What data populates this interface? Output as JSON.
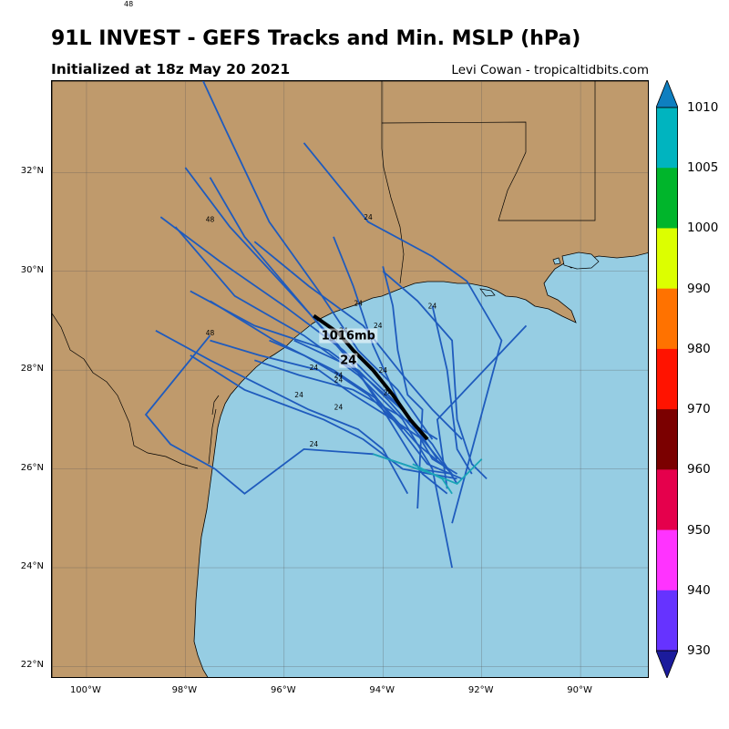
{
  "header": {
    "title": "91L INVEST - GEFS Tracks and Min. MSLP (hPa)",
    "subtitle": "Initialized at 18z May 20 2021",
    "credit": "Levi Cowan - tropicaltidbits.com",
    "stray_label": "48"
  },
  "map": {
    "extent": {
      "lon_min": -100.7,
      "lon_max": -88.6,
      "lat_min": 21.75,
      "lat_max": 33.85
    },
    "colors": {
      "land": "#bf9a6c",
      "water": "#96cde3",
      "grid": "#555555",
      "track": "#1f5bbd",
      "track_cyan": "#1aa6b7",
      "mean_track": "#000000"
    },
    "lat_ticks": [
      {
        "label": "32°N",
        "lat": 32
      },
      {
        "label": "30°N",
        "lat": 30
      },
      {
        "label": "28°N",
        "lat": 28
      },
      {
        "label": "26°N",
        "lat": 26
      },
      {
        "label": "24°N",
        "lat": 24
      },
      {
        "label": "22°N",
        "lat": 22
      }
    ],
    "lon_ticks": [
      {
        "label": "100°W",
        "lon": -100
      },
      {
        "label": "98°W",
        "lon": -98
      },
      {
        "label": "96°W",
        "lon": -96
      },
      {
        "label": "94°W",
        "lon": -94
      },
      {
        "label": "92°W",
        "lon": -92
      },
      {
        "label": "90°W",
        "lon": -90
      }
    ],
    "mslp_label": "1016mb",
    "mslp_label_pos": {
      "lon": -94.7,
      "lat": 28.62
    },
    "hour_label": "24",
    "hour_label_pos": {
      "lon": -94.7,
      "lat": 28.12
    },
    "mean_track": [
      [
        -95.4,
        29.1
      ],
      [
        -94.9,
        28.75
      ],
      [
        -94.6,
        28.4
      ],
      [
        -94.2,
        28.0
      ],
      [
        -93.8,
        27.5
      ],
      [
        -93.45,
        27.0
      ],
      [
        -93.1,
        26.6
      ]
    ],
    "tracks": [
      {
        "color": "track",
        "points": [
          [
            -97.8,
            34.2
          ],
          [
            -97.2,
            32.9
          ],
          [
            -96.3,
            31.0
          ],
          [
            -95.3,
            29.6
          ],
          [
            -94.5,
            28.4
          ],
          [
            -93.7,
            27.6
          ],
          [
            -93.0,
            26.6
          ]
        ]
      },
      {
        "color": "track",
        "points": [
          [
            -98.0,
            32.1
          ],
          [
            -97.1,
            30.9
          ],
          [
            -95.9,
            29.6
          ],
          [
            -94.9,
            28.5
          ],
          [
            -94.1,
            27.4
          ],
          [
            -93.1,
            26.1
          ],
          [
            -92.4,
            25.8
          ]
        ]
      },
      {
        "color": "track",
        "points": [
          [
            -97.5,
            31.9
          ],
          [
            -96.8,
            30.7
          ],
          [
            -95.7,
            29.4
          ],
          [
            -94.6,
            28.1
          ],
          [
            -94.0,
            27.2
          ],
          [
            -93.2,
            25.9
          ],
          [
            -92.7,
            25.5
          ]
        ]
      },
      {
        "color": "track",
        "points": [
          [
            -98.5,
            31.1
          ],
          [
            -97.3,
            30.2
          ],
          [
            -96.0,
            29.3
          ],
          [
            -94.8,
            28.4
          ],
          [
            -93.7,
            27.3
          ],
          [
            -93.0,
            26.5
          ],
          [
            -92.5,
            25.7
          ]
        ]
      },
      {
        "color": "track",
        "points": [
          [
            -98.2,
            30.9
          ],
          [
            -97.0,
            29.5
          ],
          [
            -95.6,
            28.7
          ],
          [
            -94.5,
            27.9
          ],
          [
            -93.6,
            27.0
          ],
          [
            -93.0,
            26.0
          ],
          [
            -92.6,
            24.0
          ]
        ]
      },
      {
        "color": "track",
        "points": [
          [
            -95.6,
            32.6
          ],
          [
            -94.3,
            31.0
          ],
          [
            -93.0,
            30.3
          ],
          [
            -92.3,
            29.8
          ],
          [
            -91.6,
            28.6
          ],
          [
            -92.6,
            24.9
          ]
        ]
      },
      {
        "color": "track",
        "points": [
          [
            -95.0,
            30.7
          ],
          [
            -94.6,
            29.7
          ],
          [
            -94.2,
            28.5
          ],
          [
            -93.7,
            27.4
          ],
          [
            -93.0,
            26.2
          ],
          [
            -92.5,
            25.9
          ]
        ]
      },
      {
        "color": "track",
        "points": [
          [
            -94.0,
            30.1
          ],
          [
            -93.8,
            29.3
          ],
          [
            -93.7,
            28.4
          ],
          [
            -93.5,
            27.5
          ],
          [
            -93.2,
            27.2
          ],
          [
            -93.3,
            25.2
          ]
        ]
      },
      {
        "color": "track",
        "points": [
          [
            -94.0,
            30.0
          ],
          [
            -93.3,
            29.4
          ],
          [
            -92.6,
            28.6
          ],
          [
            -92.5,
            27.0
          ],
          [
            -92.2,
            26.1
          ],
          [
            -91.9,
            25.8
          ]
        ]
      },
      {
        "color": "track",
        "points": [
          [
            -93.0,
            29.3
          ],
          [
            -92.7,
            28.0
          ],
          [
            -92.5,
            26.4
          ],
          [
            -92.2,
            25.9
          ]
        ]
      },
      {
        "color": "track",
        "points": [
          [
            -91.1,
            28.9
          ],
          [
            -92.9,
            27.0
          ],
          [
            -92.7,
            25.6
          ]
        ]
      },
      {
        "color": "track",
        "points": [
          [
            -96.6,
            30.6
          ],
          [
            -95.5,
            29.7
          ],
          [
            -94.4,
            28.9
          ],
          [
            -93.6,
            27.9
          ],
          [
            -93.0,
            27.2
          ],
          [
            -92.4,
            26.6
          ]
        ]
      },
      {
        "color": "track",
        "points": [
          [
            -97.9,
            29.6
          ],
          [
            -96.6,
            28.9
          ],
          [
            -95.1,
            28.4
          ],
          [
            -94.3,
            27.8
          ],
          [
            -93.5,
            27.1
          ],
          [
            -92.9,
            26.2
          ]
        ]
      },
      {
        "color": "track",
        "points": [
          [
            -97.5,
            29.4
          ],
          [
            -96.2,
            28.6
          ],
          [
            -95.0,
            28.0
          ],
          [
            -94.1,
            27.4
          ],
          [
            -93.3,
            26.5
          ],
          [
            -92.7,
            26.0
          ]
        ]
      },
      {
        "color": "track",
        "points": [
          [
            -98.6,
            28.8
          ],
          [
            -97.5,
            28.2
          ],
          [
            -96.5,
            27.7
          ],
          [
            -95.5,
            27.2
          ],
          [
            -94.5,
            26.8
          ],
          [
            -94.0,
            26.4
          ],
          [
            -93.5,
            25.5
          ]
        ]
      },
      {
        "color": "track",
        "points": [
          [
            -97.5,
            28.6
          ],
          [
            -96.5,
            28.3
          ],
          [
            -95.3,
            28.0
          ],
          [
            -94.6,
            27.5
          ],
          [
            -93.8,
            27.0
          ],
          [
            -93.2,
            26.6
          ]
        ]
      },
      {
        "color": "track",
        "points": [
          [
            -96.3,
            28.6
          ],
          [
            -95.6,
            28.3
          ],
          [
            -94.9,
            27.9
          ],
          [
            -94.3,
            27.5
          ],
          [
            -93.6,
            26.8
          ]
        ]
      },
      {
        "color": "track",
        "points": [
          [
            -95.8,
            28.6
          ],
          [
            -94.5,
            28.0
          ],
          [
            -93.9,
            27.4
          ],
          [
            -93.2,
            26.6
          ],
          [
            -92.7,
            26.0
          ],
          [
            -92.6,
            25.9
          ]
        ]
      },
      {
        "color": "track",
        "points": [
          [
            -97.9,
            28.3
          ],
          [
            -96.8,
            27.6
          ],
          [
            -96.0,
            27.3
          ],
          [
            -95.2,
            27.0
          ],
          [
            -94.4,
            26.6
          ],
          [
            -93.6,
            26.0
          ],
          [
            -92.5,
            25.8
          ]
        ]
      },
      {
        "color": "track",
        "points": [
          [
            -96.6,
            28.2
          ],
          [
            -95.7,
            27.9
          ],
          [
            -94.6,
            27.6
          ],
          [
            -93.7,
            27.1
          ],
          [
            -92.9,
            26.6
          ]
        ]
      },
      {
        "color": "track",
        "points": [
          [
            -97.5,
            28.7
          ],
          [
            -98.8,
            27.1
          ],
          [
            -98.3,
            26.5
          ],
          [
            -97.4,
            26.0
          ],
          [
            -96.8,
            25.5
          ],
          [
            -95.6,
            26.4
          ],
          [
            -94.2,
            26.3
          ],
          [
            -93.3,
            26.0
          ],
          [
            -92.6,
            25.9
          ]
        ]
      }
    ],
    "cyan_tracks": [
      [
        [
          -94.2,
          26.3
        ],
        [
          -93.6,
          26.1
        ],
        [
          -93.0,
          25.9
        ],
        [
          -92.5,
          25.7
        ],
        [
          -92.0,
          26.2
        ]
      ],
      [
        [
          -93.4,
          26.1
        ],
        [
          -92.8,
          25.8
        ],
        [
          -92.6,
          25.5
        ]
      ]
    ],
    "time_labels": [
      {
        "text": "48",
        "lon": -97.5,
        "lat": 31.0
      },
      {
        "text": "24",
        "lon": -94.3,
        "lat": 31.05
      },
      {
        "text": "48",
        "lon": -97.5,
        "lat": 28.7
      },
      {
        "text": "24",
        "lon": -94.5,
        "lat": 29.3
      },
      {
        "text": "24",
        "lon": -94.1,
        "lat": 28.85
      },
      {
        "text": "24",
        "lon": -94.8,
        "lat": 28.75
      },
      {
        "text": "24",
        "lon": -93.0,
        "lat": 29.25
      },
      {
        "text": "24",
        "lon": -95.0,
        "lat": 28.6
      },
      {
        "text": "24",
        "lon": -95.4,
        "lat": 28.0
      },
      {
        "text": "24",
        "lon": -94.9,
        "lat": 27.85
      },
      {
        "text": "24",
        "lon": -94.9,
        "lat": 27.75
      },
      {
        "text": "24",
        "lon": -94.0,
        "lat": 27.95
      },
      {
        "text": "24",
        "lon": -93.9,
        "lat": 27.5
      },
      {
        "text": "24",
        "lon": -95.7,
        "lat": 27.45
      },
      {
        "text": "24",
        "lon": -94.9,
        "lat": 27.2
      },
      {
        "text": "24",
        "lon": -95.4,
        "lat": 26.45
      }
    ]
  },
  "colorbar": {
    "label": "MSLP (hPa)",
    "ticks": [
      "1010",
      "1005",
      "1000",
      "990",
      "980",
      "970",
      "960",
      "950",
      "940",
      "930"
    ],
    "segments": [
      "#0e7fc0",
      "#00b4bf",
      "#00b52b",
      "#dcff00",
      "#ff7200",
      "#ff1300",
      "#7b0000",
      "#e5004c",
      "#ff33ff",
      "#6633ff",
      "#1b1b9c"
    ]
  }
}
